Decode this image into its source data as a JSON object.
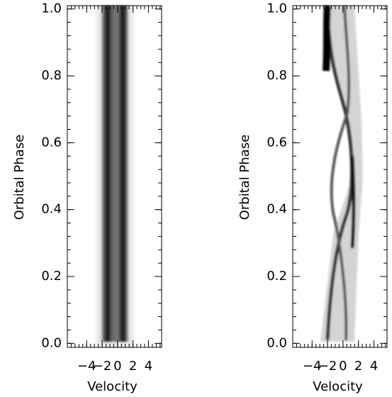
{
  "chart_data": [
    {
      "type": "image",
      "xlabel": "Velocity",
      "ylabel": "Orbital Phase",
      "xlim": [
        -6.5,
        5.7
      ],
      "ylim": [
        -0.012,
        1.01
      ],
      "xticks": [
        {
          "value": -4,
          "label": "−4"
        },
        {
          "value": -2,
          "label": "−2"
        },
        0,
        2,
        4
      ],
      "yticks": [
        {
          "value": 0,
          "label": "0.0"
        },
        0.2,
        0.4,
        0.6,
        0.8,
        {
          "value": 1,
          "label": "1.0"
        }
      ]
    },
    {
      "type": "image",
      "xlabel": "Velocity",
      "ylabel": "Orbital Phase",
      "xlim": [
        -6.5,
        5.7
      ],
      "ylim": [
        -0.012,
        1.01
      ],
      "xticks": [
        {
          "value": -4,
          "label": "−4"
        },
        {
          "value": -2,
          "label": "−2"
        },
        0,
        2,
        4
      ],
      "yticks": [
        {
          "value": 0,
          "label": "0.0"
        },
        0.2,
        0.4,
        0.6,
        0.8,
        {
          "value": 1,
          "label": "1.0"
        }
      ]
    }
  ]
}
